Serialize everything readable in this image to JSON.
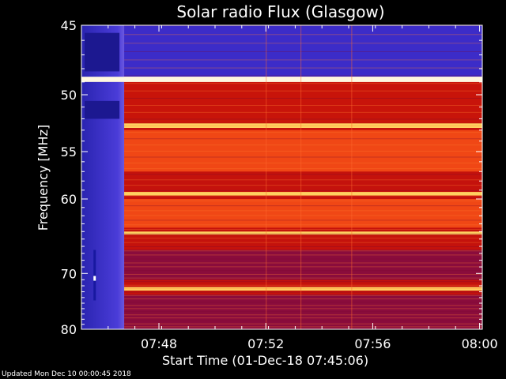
{
  "chart_data": {
    "type": "heatmap",
    "title": "Solar radio Flux (Glasgow)",
    "xlabel": "Start Time (01-Dec-18 07:45:06)",
    "ylabel": "Frequency [MHz]",
    "x_range_minutes": [
      0,
      15
    ],
    "x_ticks": [
      {
        "label": "07:48",
        "minutes": 2.9
      },
      {
        "label": "07:52",
        "minutes": 6.9
      },
      {
        "label": "07:56",
        "minutes": 10.9
      },
      {
        "label": "08:00",
        "minutes": 14.9
      }
    ],
    "y_range": [
      80,
      45
    ],
    "y_ticks": [
      45,
      50,
      55,
      60,
      70,
      80
    ],
    "y_scale": "reciprocal",
    "palette": {
      "low": "#3c2cc8",
      "mid": "#c8140a",
      "high": "#ffe070",
      "peak": "#ffffff"
    },
    "bands_mhz": [
      {
        "from": 45,
        "to": 48.6,
        "level": "low"
      },
      {
        "from": 48.6,
        "to": 49.0,
        "level": "peak"
      },
      {
        "from": 49.0,
        "to": 52.3,
        "level": "mid"
      },
      {
        "from": 52.4,
        "to": 52.8,
        "level": "high"
      },
      {
        "from": 53.0,
        "to": 57.0,
        "level": "warm"
      },
      {
        "from": 59.2,
        "to": 59.6,
        "level": "high"
      },
      {
        "from": 60.0,
        "to": 63.5,
        "level": "warm"
      },
      {
        "from": 64.0,
        "to": 64.4,
        "level": "high"
      },
      {
        "from": 66.5,
        "to": 71.0,
        "level": "dark"
      },
      {
        "from": 72.2,
        "to": 72.8,
        "level": "high"
      },
      {
        "from": 73.5,
        "to": 80.0,
        "level": "dark"
      }
    ],
    "data_gap_minutes": [
      0,
      1.6
    ]
  },
  "footer": {
    "updated": "Updated Mon Dec 10 00:00:45 2018"
  }
}
